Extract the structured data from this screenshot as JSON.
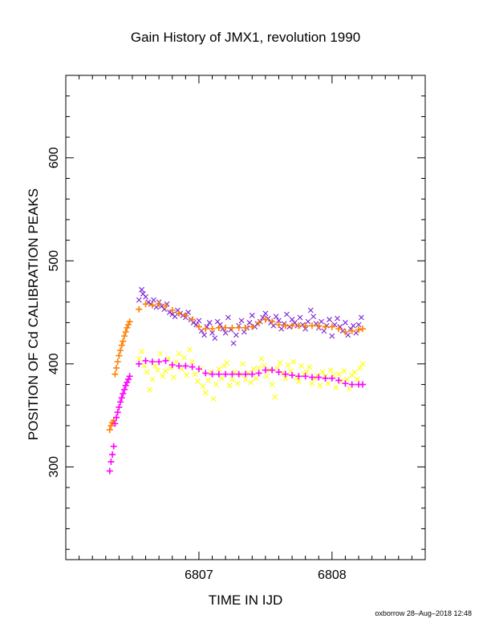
{
  "chart_data": {
    "type": "scatter",
    "title": "Gain History of JMX1, revolution 1990",
    "xlabel": "TIME IN IJD",
    "ylabel": "POSITION OF Cd CALIBRATION PEAKS",
    "footer": "oxborrow 28–Aug–2018 12:48",
    "xlim": [
      6806.0,
      6808.7
    ],
    "ylim": [
      210,
      680
    ],
    "x_ticks": [
      6807,
      6808
    ],
    "x_tick_labels": [
      "6807",
      "6808"
    ],
    "y_ticks": [
      300,
      400,
      500,
      600
    ],
    "y_tick_labels": [
      "300",
      "400",
      "500",
      "600"
    ],
    "grid": false,
    "colors": {
      "upper_raw": "#7a22d6",
      "upper_smooth": "#ff7f00",
      "lower_raw": "#ffff00",
      "lower_smooth": "#ff00ff",
      "axis": "#000000"
    },
    "series": [
      {
        "marker": "x",
        "color": "#7a22d6",
        "x": [
          6806.55,
          6806.57,
          6806.58,
          6806.6,
          6806.62,
          6806.64,
          6806.66,
          6806.68,
          6806.7,
          6806.72,
          6806.74,
          6806.76,
          6806.78,
          6806.8,
          6806.82,
          6806.84,
          6806.86,
          6806.88,
          6806.9,
          6806.92,
          6806.94,
          6806.96,
          6806.98,
          6807.0,
          6807.02,
          6807.04,
          6807.06,
          6807.08,
          6807.1,
          6807.12,
          6807.14,
          6807.16,
          6807.18,
          6807.2,
          6807.22,
          6807.24,
          6807.26,
          6807.28,
          6807.3,
          6807.32,
          6807.34,
          6807.36,
          6807.38,
          6807.4,
          6807.42,
          6807.44,
          6807.46,
          6807.48,
          6807.5,
          6807.52,
          6807.54,
          6807.56,
          6807.58,
          6807.6,
          6807.62,
          6807.64,
          6807.66,
          6807.68,
          6807.7,
          6807.72,
          6807.74,
          6807.76,
          6807.78,
          6807.8,
          6807.82,
          6807.84,
          6807.86,
          6807.88,
          6807.9,
          6807.92,
          6807.94,
          6807.96,
          6807.98,
          6808.0,
          6808.02,
          6808.04,
          6808.06,
          6808.08,
          6808.1,
          6808.12,
          6808.14,
          6808.16,
          6808.18,
          6808.2,
          6808.22
        ],
        "y": [
          462,
          472,
          468,
          465,
          460,
          458,
          462,
          455,
          460,
          456,
          453,
          458,
          450,
          448,
          446,
          452,
          449,
          447,
          445,
          450,
          443,
          440,
          438,
          442,
          432,
          428,
          436,
          440,
          430,
          425,
          441,
          438,
          434,
          430,
          445,
          433,
          420,
          428,
          437,
          442,
          431,
          435,
          440,
          447,
          436,
          439,
          441,
          445,
          449,
          444,
          440,
          437,
          446,
          442,
          434,
          439,
          448,
          436,
          443,
          440,
          437,
          445,
          438,
          434,
          441,
          452,
          446,
          439,
          435,
          441,
          432,
          437,
          443,
          427,
          438,
          444,
          436,
          432,
          440,
          428,
          434,
          437,
          430,
          438,
          445
        ]
      },
      {
        "marker": "+",
        "color": "#ff7f00",
        "x": [
          6806.33,
          6806.34,
          6806.35,
          6806.36,
          6806.37,
          6806.38,
          6806.39,
          6806.4,
          6806.41,
          6806.42,
          6806.43,
          6806.44,
          6806.45,
          6806.46,
          6806.47,
          6806.48,
          6806.55,
          6806.6,
          6806.65,
          6806.7,
          6806.75,
          6806.8,
          6806.85,
          6806.9,
          6806.95,
          6807.0,
          6807.05,
          6807.1,
          6807.15,
          6807.2,
          6807.25,
          6807.3,
          6807.35,
          6807.4,
          6807.45,
          6807.5,
          6807.55,
          6807.6,
          6807.65,
          6807.7,
          6807.75,
          6807.8,
          6807.85,
          6807.9,
          6807.95,
          6808.0,
          6808.05,
          6808.1,
          6808.15,
          6808.2,
          6808.23
        ],
        "y": [
          336,
          340,
          343,
          345,
          390,
          396,
          402,
          408,
          413,
          418,
          422,
          427,
          431,
          435,
          438,
          441,
          453,
          458,
          457,
          458,
          456,
          452,
          449,
          447,
          443,
          436,
          434,
          434,
          435,
          435,
          435,
          435,
          435,
          436,
          440,
          443,
          441,
          438,
          437,
          437,
          437,
          437,
          437,
          437,
          436,
          436,
          434,
          431,
          432,
          433,
          434
        ]
      },
      {
        "marker": "x",
        "color": "#ffff00",
        "x": [
          6806.55,
          6806.57,
          6806.59,
          6806.61,
          6806.63,
          6806.65,
          6806.67,
          6806.69,
          6806.71,
          6806.73,
          6806.75,
          6806.77,
          6806.79,
          6806.81,
          6806.83,
          6806.85,
          6806.87,
          6806.89,
          6806.91,
          6806.93,
          6806.95,
          6806.97,
          6806.99,
          6807.01,
          6807.03,
          6807.05,
          6807.07,
          6807.09,
          6807.11,
          6807.13,
          6807.15,
          6807.17,
          6807.19,
          6807.21,
          6807.23,
          6807.25,
          6807.27,
          6807.29,
          6807.31,
          6807.33,
          6807.35,
          6807.37,
          6807.39,
          6807.41,
          6807.43,
          6807.45,
          6807.47,
          6807.49,
          6807.51,
          6807.53,
          6807.55,
          6807.57,
          6807.59,
          6807.61,
          6807.63,
          6807.65,
          6807.67,
          6807.69,
          6807.71,
          6807.73,
          6807.75,
          6807.77,
          6807.79,
          6807.81,
          6807.83,
          6807.85,
          6807.87,
          6807.89,
          6807.91,
          6807.93,
          6807.95,
          6807.97,
          6807.99,
          6808.01,
          6808.03,
          6808.05,
          6808.07,
          6808.09,
          6808.11,
          6808.13,
          6808.15,
          6808.17,
          6808.19,
          6808.21,
          6808.23
        ],
        "y": [
          405,
          412,
          398,
          392,
          375,
          385,
          398,
          394,
          410,
          388,
          393,
          405,
          396,
          387,
          402,
          410,
          395,
          406,
          389,
          414,
          402,
          390,
          383,
          395,
          378,
          372,
          384,
          392,
          366,
          380,
          395,
          386,
          398,
          401,
          379,
          385,
          392,
          381,
          390,
          400,
          385,
          391,
          382,
          395,
          386,
          396,
          405,
          398,
          388,
          394,
          380,
          368,
          396,
          401,
          391,
          386,
          399,
          393,
          402,
          387,
          383,
          398,
          390,
          392,
          397,
          381,
          386,
          389,
          379,
          392,
          388,
          381,
          394,
          389,
          377,
          390,
          383,
          393,
          385,
          376,
          389,
          392,
          385,
          396,
          400
        ]
      },
      {
        "marker": "+",
        "color": "#ff00ff",
        "x": [
          6806.33,
          6806.34,
          6806.35,
          6806.36,
          6806.37,
          6806.38,
          6806.39,
          6806.4,
          6806.41,
          6806.42,
          6806.43,
          6806.44,
          6806.45,
          6806.46,
          6806.47,
          6806.48,
          6806.55,
          6806.6,
          6806.65,
          6806.7,
          6806.75,
          6806.8,
          6806.85,
          6806.9,
          6806.95,
          6807.0,
          6807.05,
          6807.1,
          6807.15,
          6807.2,
          6807.25,
          6807.3,
          6807.35,
          6807.4,
          6807.45,
          6807.5,
          6807.55,
          6807.6,
          6807.65,
          6807.7,
          6807.75,
          6807.8,
          6807.85,
          6807.9,
          6807.95,
          6808.0,
          6808.05,
          6808.1,
          6808.15,
          6808.2,
          6808.23
        ],
        "y": [
          296,
          305,
          312,
          320,
          342,
          348,
          353,
          358,
          363,
          367,
          371,
          375,
          379,
          382,
          385,
          388,
          400,
          403,
          402,
          402,
          403,
          399,
          398,
          398,
          397,
          395,
          391,
          390,
          390,
          390,
          390,
          390,
          390,
          390,
          391,
          394,
          394,
          392,
          390,
          389,
          388,
          388,
          387,
          387,
          386,
          386,
          384,
          381,
          380,
          380,
          380
        ]
      }
    ]
  }
}
